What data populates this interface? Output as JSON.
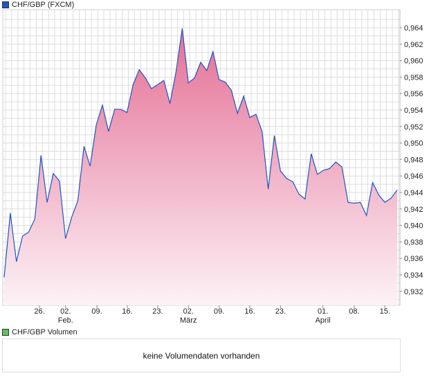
{
  "legend": {
    "main_label": "CHF/GBP (FXCM)",
    "main_color": "#1a56c4",
    "volume_label": "CHF/GBP Volumen",
    "volume_color": "#5cc45c"
  },
  "volume": {
    "empty_message": "keine Volumendaten vorhanden"
  },
  "chart_data": {
    "type": "area",
    "title": "CHF/GBP (FXCM)",
    "xlabel": "",
    "ylabel": "",
    "ylim": [
      0.9305,
      0.9652
    ],
    "y_ticks": [
      "0,932",
      "0,934",
      "0,936",
      "0,938",
      "0,940",
      "0,942",
      "0,944",
      "0,946",
      "0,948",
      "0,950",
      "0,952",
      "0,954",
      "0,956",
      "0,958",
      "0,960",
      "0,962",
      "0,964"
    ],
    "y_tick_values": [
      0.932,
      0.934,
      0.936,
      0.938,
      0.94,
      0.942,
      0.944,
      0.946,
      0.948,
      0.95,
      0.952,
      0.954,
      0.956,
      0.958,
      0.96,
      0.962,
      0.964
    ],
    "x_ticks": [
      {
        "index": 5.75,
        "label": "26.",
        "sub": ""
      },
      {
        "index": 10,
        "label": "02.",
        "sub": "Feb."
      },
      {
        "index": 15.1,
        "label": "09.",
        "sub": ""
      },
      {
        "index": 20.05,
        "label": "16.",
        "sub": ""
      },
      {
        "index": 25,
        "label": "23.",
        "sub": ""
      },
      {
        "index": 30,
        "label": "02.",
        "sub": "März"
      },
      {
        "index": 35,
        "label": "09.",
        "sub": ""
      },
      {
        "index": 40,
        "label": "16.",
        "sub": ""
      },
      {
        "index": 45,
        "label": "23.",
        "sub": ""
      },
      {
        "index": 51.9,
        "label": "01.",
        "sub": "April"
      },
      {
        "index": 57,
        "label": "08.",
        "sub": ""
      },
      {
        "index": 62,
        "label": "15.",
        "sub": ""
      }
    ],
    "grid": true,
    "series": [
      {
        "name": "CHF/GBP (FXCM)",
        "values": [
          0.9337,
          0.9415,
          0.9356,
          0.9387,
          0.9392,
          0.9408,
          0.9485,
          0.9428,
          0.9463,
          0.9454,
          0.9384,
          0.941,
          0.943,
          0.9496,
          0.9472,
          0.9522,
          0.9546,
          0.9514,
          0.9541,
          0.9541,
          0.9537,
          0.9571,
          0.9589,
          0.9579,
          0.9566,
          0.9571,
          0.9576,
          0.9548,
          0.9587,
          0.9639,
          0.9573,
          0.9579,
          0.9598,
          0.9588,
          0.9611,
          0.9577,
          0.9574,
          0.9564,
          0.9536,
          0.9557,
          0.9531,
          0.9535,
          0.9514,
          0.9444,
          0.9509,
          0.9466,
          0.9457,
          0.9453,
          0.9438,
          0.9432,
          0.9487,
          0.9462,
          0.9467,
          0.9469,
          0.9477,
          0.9471,
          0.9428,
          0.9427,
          0.9428,
          0.9412,
          0.9452,
          0.9437,
          0.9428,
          0.9433,
          0.9443
        ]
      }
    ]
  }
}
